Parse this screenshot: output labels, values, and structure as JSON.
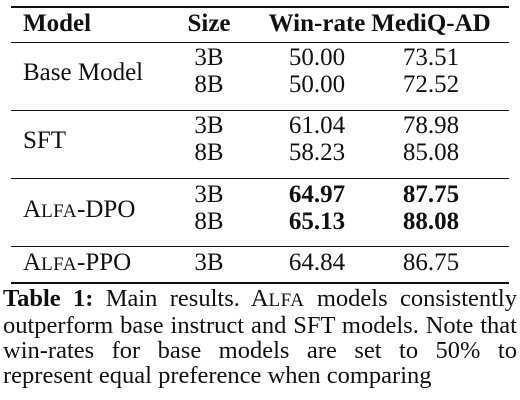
{
  "table": {
    "headers": [
      "Model",
      "Size",
      "Win-rate",
      "MediQ-AD"
    ],
    "groups": [
      {
        "model": "Base Model",
        "rows": [
          {
            "size": "3B",
            "win_rate": "50.00",
            "mediq_ad": "73.51"
          },
          {
            "size": "8B",
            "win_rate": "50.00",
            "mediq_ad": "72.52"
          }
        ]
      },
      {
        "model": "SFT",
        "rows": [
          {
            "size": "3B",
            "win_rate": "61.04",
            "mediq_ad": "78.98"
          },
          {
            "size": "8B",
            "win_rate": "58.23",
            "mediq_ad": "85.08"
          }
        ]
      },
      {
        "model_first": "A",
        "model_sc": "LFA",
        "model_rest": "-DPO",
        "rows": [
          {
            "size": "3B",
            "win_rate": "64.97",
            "mediq_ad": "87.75"
          },
          {
            "size": "8B",
            "win_rate": "65.13",
            "mediq_ad": "88.08"
          }
        ]
      },
      {
        "model_first": "A",
        "model_sc": "LFA",
        "model_rest": "-PPO",
        "rows": [
          {
            "size": "3B",
            "win_rate": "64.84",
            "mediq_ad": "86.75"
          }
        ]
      }
    ]
  },
  "caption": {
    "label": "Table 1:",
    "text_1": " Main results. A",
    "text_sc": "LFA",
    "text_2": " models consistently outperform base instruct and SFT models. Note that win-rates for base models are set to 50% to represent equal preference when comparing"
  }
}
